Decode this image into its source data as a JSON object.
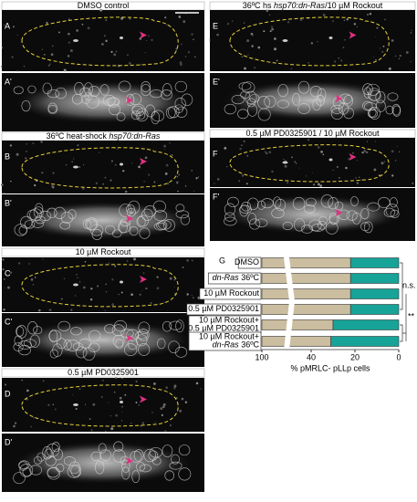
{
  "panels": [
    {
      "title": [
        {
          "text": "DMSO control"
        }
      ],
      "labels": [
        "A",
        "A'"
      ]
    },
    {
      "title": [
        {
          "text": "36ºC heat-shock "
        },
        {
          "text": "hsp70:dn-Ras",
          "italic": true
        }
      ],
      "labels": [
        "B",
        "B'"
      ]
    },
    {
      "title": [
        {
          "text": "10 µM Rockout"
        }
      ],
      "labels": [
        "C",
        "C'"
      ]
    },
    {
      "title": [
        {
          "text": "0.5 µM PD0325901"
        }
      ],
      "labels": [
        "D",
        "D'"
      ]
    },
    {
      "title": [
        {
          "text": "36ºC hs "
        },
        {
          "text": "hsp70:dn-Ras",
          "italic": true
        },
        {
          "text": "/10 µM Rockout"
        }
      ],
      "labels": [
        "E",
        "E'"
      ]
    },
    {
      "title": [
        {
          "text": "0.5 µM PD0325901 / 10 µM Rockout"
        }
      ],
      "labels": [
        "F",
        "F'"
      ]
    }
  ],
  "chart_data": {
    "type": "bar",
    "panel_label": "G",
    "categories": [
      [
        [
          {
            "text": "DMSO"
          }
        ]
      ],
      [
        [
          {
            "text": "dn-Ras",
            "italic": true
          },
          {
            "text": " 36ºC"
          }
        ]
      ],
      [
        [
          {
            "text": "10 µM Rockout"
          }
        ]
      ],
      [
        [
          {
            "text": "0.5 µM PD0325901"
          }
        ]
      ],
      [
        [
          {
            "text": "10 µM Rockout+"
          }
        ],
        [
          {
            "text": "0.5 µM PD0325901"
          }
        ]
      ],
      [
        [
          {
            "text": "10 µM Rockout+"
          }
        ],
        [
          {
            "text": "dn-Ras",
            "italic": true
          },
          {
            "text": " 36ºC"
          }
        ]
      ]
    ],
    "values": [
      22,
      22,
      22,
      22,
      30,
      31
    ],
    "color": "#17a398",
    "background_color": "#cbbd9f",
    "xlim": [
      100,
      0
    ],
    "xticks": [
      100,
      40,
      20,
      0
    ],
    "axis_break": [
      50,
      90
    ],
    "xlabel": "% pMRLC- pLLp cells",
    "annotations": [
      "n.s.",
      "**"
    ]
  }
}
